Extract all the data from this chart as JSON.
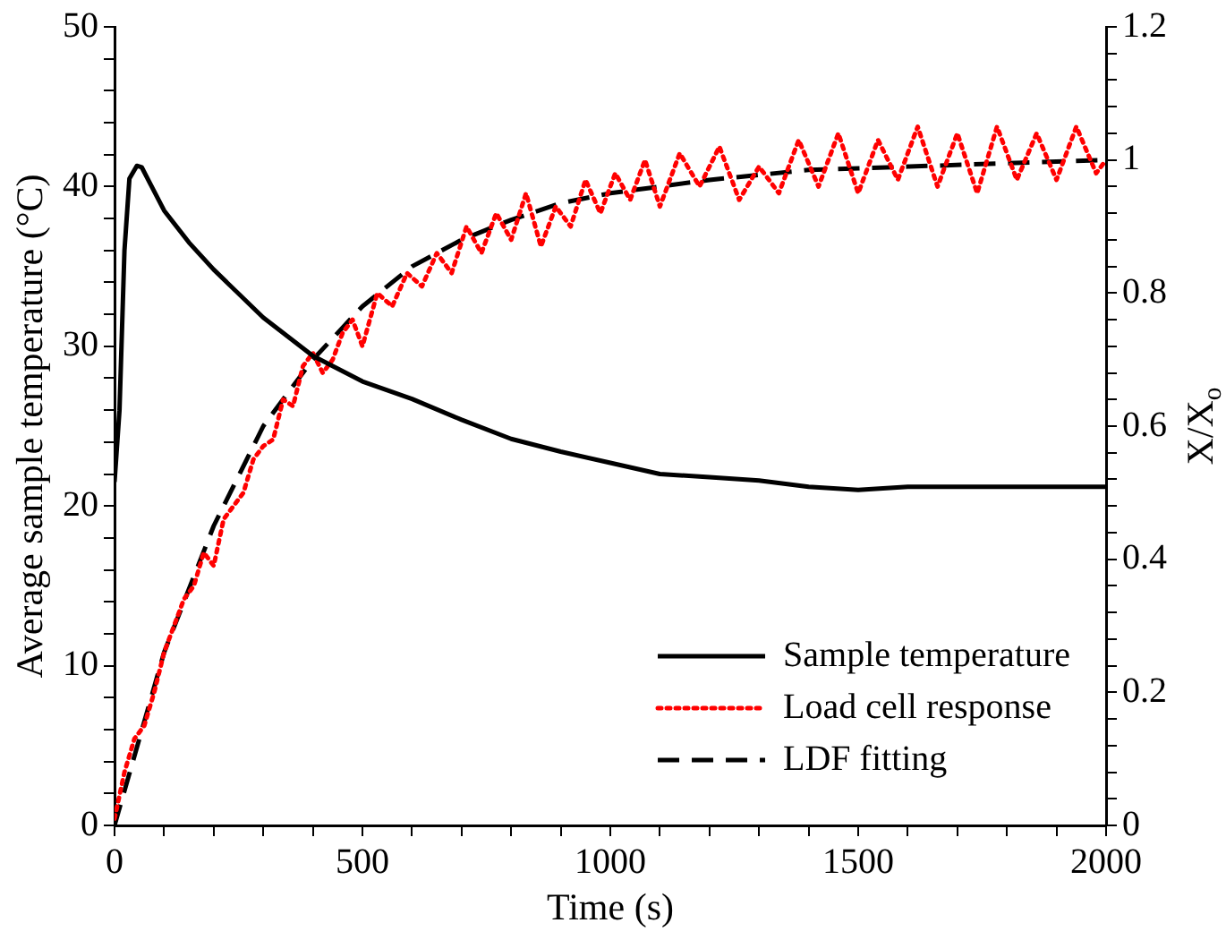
{
  "chart_data": {
    "type": "line",
    "xlabel": "Time (s)",
    "ylabel": "Average sample temperature (°C)",
    "y2label": "X/X$_{o}$",
    "legend": "bottom right",
    "grid": false,
    "xlim": [
      0,
      2000
    ],
    "xticks": [
      0,
      {
        "value": 100,
        "label": null
      },
      {
        "value": 200,
        "label": null
      },
      {
        "value": 300,
        "label": null
      },
      {
        "value": 400,
        "label": null
      },
      500,
      {
        "value": 600,
        "label": null
      },
      {
        "value": 700,
        "label": null
      },
      {
        "value": 800,
        "label": null
      },
      {
        "value": 900,
        "label": null
      },
      1000,
      {
        "value": 1100,
        "label": null
      },
      {
        "value": 1200,
        "label": null
      },
      {
        "value": 1300,
        "label": null
      },
      {
        "value": 1400,
        "label": null
      },
      1500,
      {
        "value": 1600,
        "label": null
      },
      {
        "value": 1700,
        "label": null
      },
      {
        "value": 1800,
        "label": null
      },
      {
        "value": 1900,
        "label": null
      },
      2000
    ],
    "ylim": [
      0,
      50
    ],
    "yticks": [
      0,
      {
        "value": 2,
        "label": null
      },
      {
        "value": 4,
        "label": null
      },
      {
        "value": 6,
        "label": null
      },
      {
        "value": 8,
        "label": null
      },
      10,
      {
        "value": 12,
        "label": null
      },
      {
        "value": 14,
        "label": null
      },
      {
        "value": 16,
        "label": null
      },
      {
        "value": 18,
        "label": null
      },
      20,
      {
        "value": 22,
        "label": null
      },
      {
        "value": 24,
        "label": null
      },
      {
        "value": 26,
        "label": null
      },
      {
        "value": 28,
        "label": null
      },
      30,
      {
        "value": 32,
        "label": null
      },
      {
        "value": 34,
        "label": null
      },
      {
        "value": 36,
        "label": null
      },
      {
        "value": 38,
        "label": null
      },
      40,
      {
        "value": 42,
        "label": null
      },
      {
        "value": 44,
        "label": null
      },
      {
        "value": 46,
        "label": null
      },
      {
        "value": 48,
        "label": null
      },
      50
    ],
    "y2lim": [
      0,
      1.2
    ],
    "y2ticks": [
      0,
      {
        "value": 0.04,
        "label": null
      },
      {
        "value": 0.08,
        "label": null
      },
      {
        "value": 0.12,
        "label": null
      },
      {
        "value": 0.16,
        "label": null
      },
      0.2,
      {
        "value": 0.24,
        "label": null
      },
      {
        "value": 0.28,
        "label": null
      },
      {
        "value": 0.32,
        "label": null
      },
      {
        "value": 0.36,
        "label": null
      },
      0.4,
      {
        "value": 0.44,
        "label": null
      },
      {
        "value": 0.48,
        "label": null
      },
      {
        "value": 0.52,
        "label": null
      },
      {
        "value": 0.56,
        "label": null
      },
      0.6,
      {
        "value": 0.64,
        "label": null
      },
      {
        "value": 0.68,
        "label": null
      },
      {
        "value": 0.72,
        "label": null
      },
      {
        "value": 0.76,
        "label": null
      },
      0.8,
      {
        "value": 0.84,
        "label": null
      },
      {
        "value": 0.88,
        "label": null
      },
      {
        "value": 0.92,
        "label": null
      },
      {
        "value": 0.96,
        "label": null
      },
      1,
      {
        "value": 1.04,
        "label": null
      },
      {
        "value": 1.08,
        "label": null
      },
      {
        "value": 1.12,
        "label": null
      },
      {
        "value": 1.16,
        "label": null
      },
      1.2
    ],
    "series": [
      {
        "name": "Sample temperature",
        "color": "#000000",
        "line_style": "solid",
        "x": [
          0,
          10,
          20,
          30,
          45,
          55,
          70,
          100,
          150,
          200,
          300,
          400,
          500,
          600,
          700,
          800,
          900,
          1000,
          1100,
          1200,
          1300,
          1400,
          1500,
          1600,
          1700,
          1800,
          1900,
          2000
        ],
        "values": [
          21.5,
          26,
          36,
          40.5,
          41.3,
          41.2,
          40.3,
          38.5,
          36.5,
          34.8,
          31.8,
          29.4,
          27.8,
          26.7,
          25.4,
          24.2,
          23.4,
          22.7,
          22.0,
          21.8,
          21.6,
          21.2,
          21.0,
          21.2,
          21.2,
          21.2,
          21.2,
          21.2
        ]
      },
      {
        "name": "Load cell response",
        "color": "#ff0000",
        "line_style": "dotted",
        "axis": "y2",
        "x": [
          0,
          20,
          40,
          60,
          80,
          100,
          120,
          140,
          160,
          180,
          200,
          220,
          240,
          260,
          280,
          300,
          320,
          340,
          360,
          380,
          400,
          420,
          440,
          460,
          480,
          500,
          530,
          560,
          590,
          620,
          650,
          680,
          710,
          740,
          770,
          800,
          830,
          860,
          890,
          920,
          950,
          980,
          1010,
          1040,
          1070,
          1100,
          1140,
          1180,
          1220,
          1260,
          1300,
          1340,
          1380,
          1420,
          1460,
          1500,
          1540,
          1580,
          1620,
          1660,
          1700,
          1740,
          1780,
          1820,
          1860,
          1900,
          1940,
          1980,
          2000
        ],
        "values": [
          0.01,
          0.08,
          0.13,
          0.15,
          0.2,
          0.26,
          0.3,
          0.34,
          0.36,
          0.41,
          0.39,
          0.46,
          0.48,
          0.5,
          0.55,
          0.57,
          0.58,
          0.64,
          0.63,
          0.69,
          0.71,
          0.68,
          0.7,
          0.74,
          0.76,
          0.72,
          0.8,
          0.78,
          0.83,
          0.81,
          0.86,
          0.83,
          0.9,
          0.86,
          0.92,
          0.88,
          0.95,
          0.87,
          0.93,
          0.9,
          0.97,
          0.92,
          0.98,
          0.94,
          1.0,
          0.93,
          1.01,
          0.96,
          1.02,
          0.94,
          0.99,
          0.95,
          1.03,
          0.96,
          1.04,
          0.95,
          1.03,
          0.97,
          1.05,
          0.96,
          1.04,
          0.95,
          1.05,
          0.97,
          1.04,
          0.97,
          1.05,
          0.98,
          1.0
        ]
      },
      {
        "name": "LDF fitting",
        "color": "#000000",
        "line_style": "dashed",
        "axis": "y2",
        "x": [
          0,
          100,
          200,
          300,
          400,
          500,
          600,
          700,
          800,
          900,
          1000,
          1200,
          1400,
          1600,
          1800,
          2000
        ],
        "values": [
          0,
          0.26,
          0.45,
          0.6,
          0.7,
          0.78,
          0.84,
          0.88,
          0.91,
          0.935,
          0.95,
          0.97,
          0.985,
          0.99,
          0.995,
          1.0
        ]
      }
    ]
  }
}
